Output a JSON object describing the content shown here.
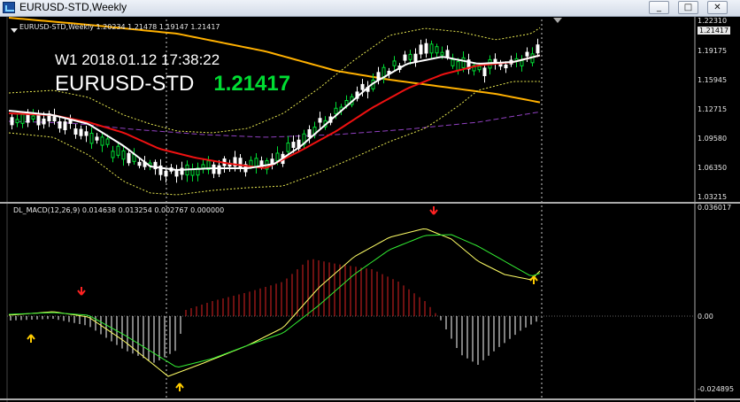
{
  "window": {
    "title": "EURUSD-STD,Weekly",
    "buttons": [
      "_",
      "□",
      "✕"
    ]
  },
  "main_panel": {
    "header": "EURUSD-STD,Weekly  1.20234 1.21478 1.19147 1.21417",
    "timeframe_line": "W1  2018.01.12 17:38:22",
    "symbol": "EURUSD-STD",
    "last_price": "1.21417",
    "price_labels": [
      "1.22310",
      "1.21417",
      "1.19175",
      "1.15945",
      "1.12715",
      "1.09580",
      "1.06350",
      "1.03215"
    ],
    "current_price_label": "1.21417"
  },
  "macd_panel": {
    "header": "DL_MACD(12,26,9) 0.014638 0.013254 0.002767 0.000000",
    "scale_labels": [
      "0.036017",
      "0.00",
      "-0.024895"
    ]
  },
  "colors": {
    "up_candle": "#00dd33",
    "down_candle": "#ffffff",
    "bollinger": "#e6e650",
    "ma_fast": "#ffffff",
    "ma_slow": "#ee1111",
    "ma_long": "#ffb000",
    "ma_purple": "#9040c0",
    "macd_line": "#ffff66",
    "signal_line": "#33ee33",
    "hist_pos": "#dd2222",
    "hist_neg": "#ffffff",
    "buy_arrow": "#ffcc00",
    "sell_arrow": "#ff2222",
    "price_label": "#e6e6e6",
    "info_price": "#00dd33"
  },
  "icons": [
    "chart-window-icon",
    "minimize-icon",
    "restore-icon",
    "close-icon",
    "buy-arrow-icon",
    "sell-arrow-icon"
  ]
}
